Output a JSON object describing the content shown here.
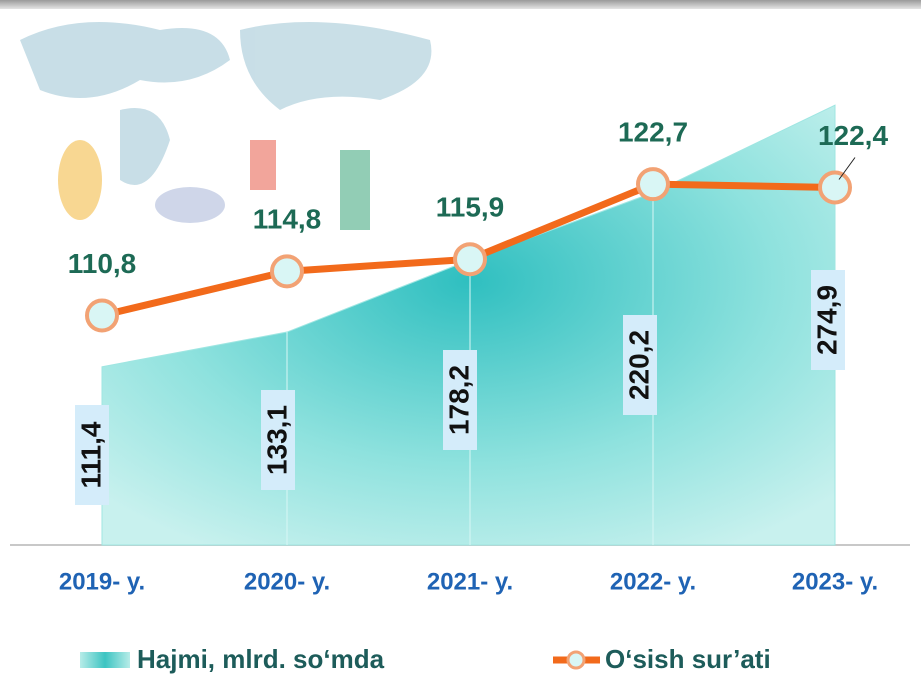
{
  "chart_data": {
    "type": "area",
    "categories": [
      "2019- y.",
      "2020- y.",
      "2021- y.",
      "2022- y.",
      "2023- y."
    ],
    "series": [
      {
        "name": "Hajmi, mlrd. so‘mda",
        "type": "area",
        "color": "#6fd6d0",
        "values": [
          111.4,
          133.1,
          178.2,
          220.2,
          274.9
        ],
        "value_labels": [
          "111,4",
          "133,1",
          "178,2",
          "220,2",
          "274,9"
        ]
      },
      {
        "name": "O‘sish sur’ati",
        "type": "line",
        "axis": "y2",
        "color": "#f26a1b",
        "values": [
          110.8,
          114.8,
          115.9,
          122.7,
          122.4
        ],
        "value_labels": [
          "110,8",
          "114,8",
          "115,9",
          "122,7",
          "122,4"
        ]
      }
    ],
    "ylim": [
      0,
      300
    ],
    "y2lim": [
      90,
      133.5
    ]
  }
}
